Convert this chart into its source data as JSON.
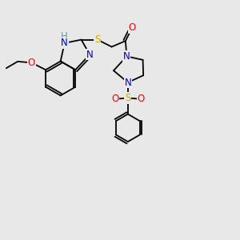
{
  "bg_color": "#e8e8e8",
  "atom_colors": {
    "N": "#0000cc",
    "O": "#ff0000",
    "S": "#ccaa00",
    "H": "#5f9ea0",
    "C": "#000000"
  },
  "bond_color": "#000000",
  "bond_lw": 1.3,
  "font_size": 8.5,
  "xlim": [
    0,
    10
  ],
  "ylim": [
    0,
    10
  ]
}
